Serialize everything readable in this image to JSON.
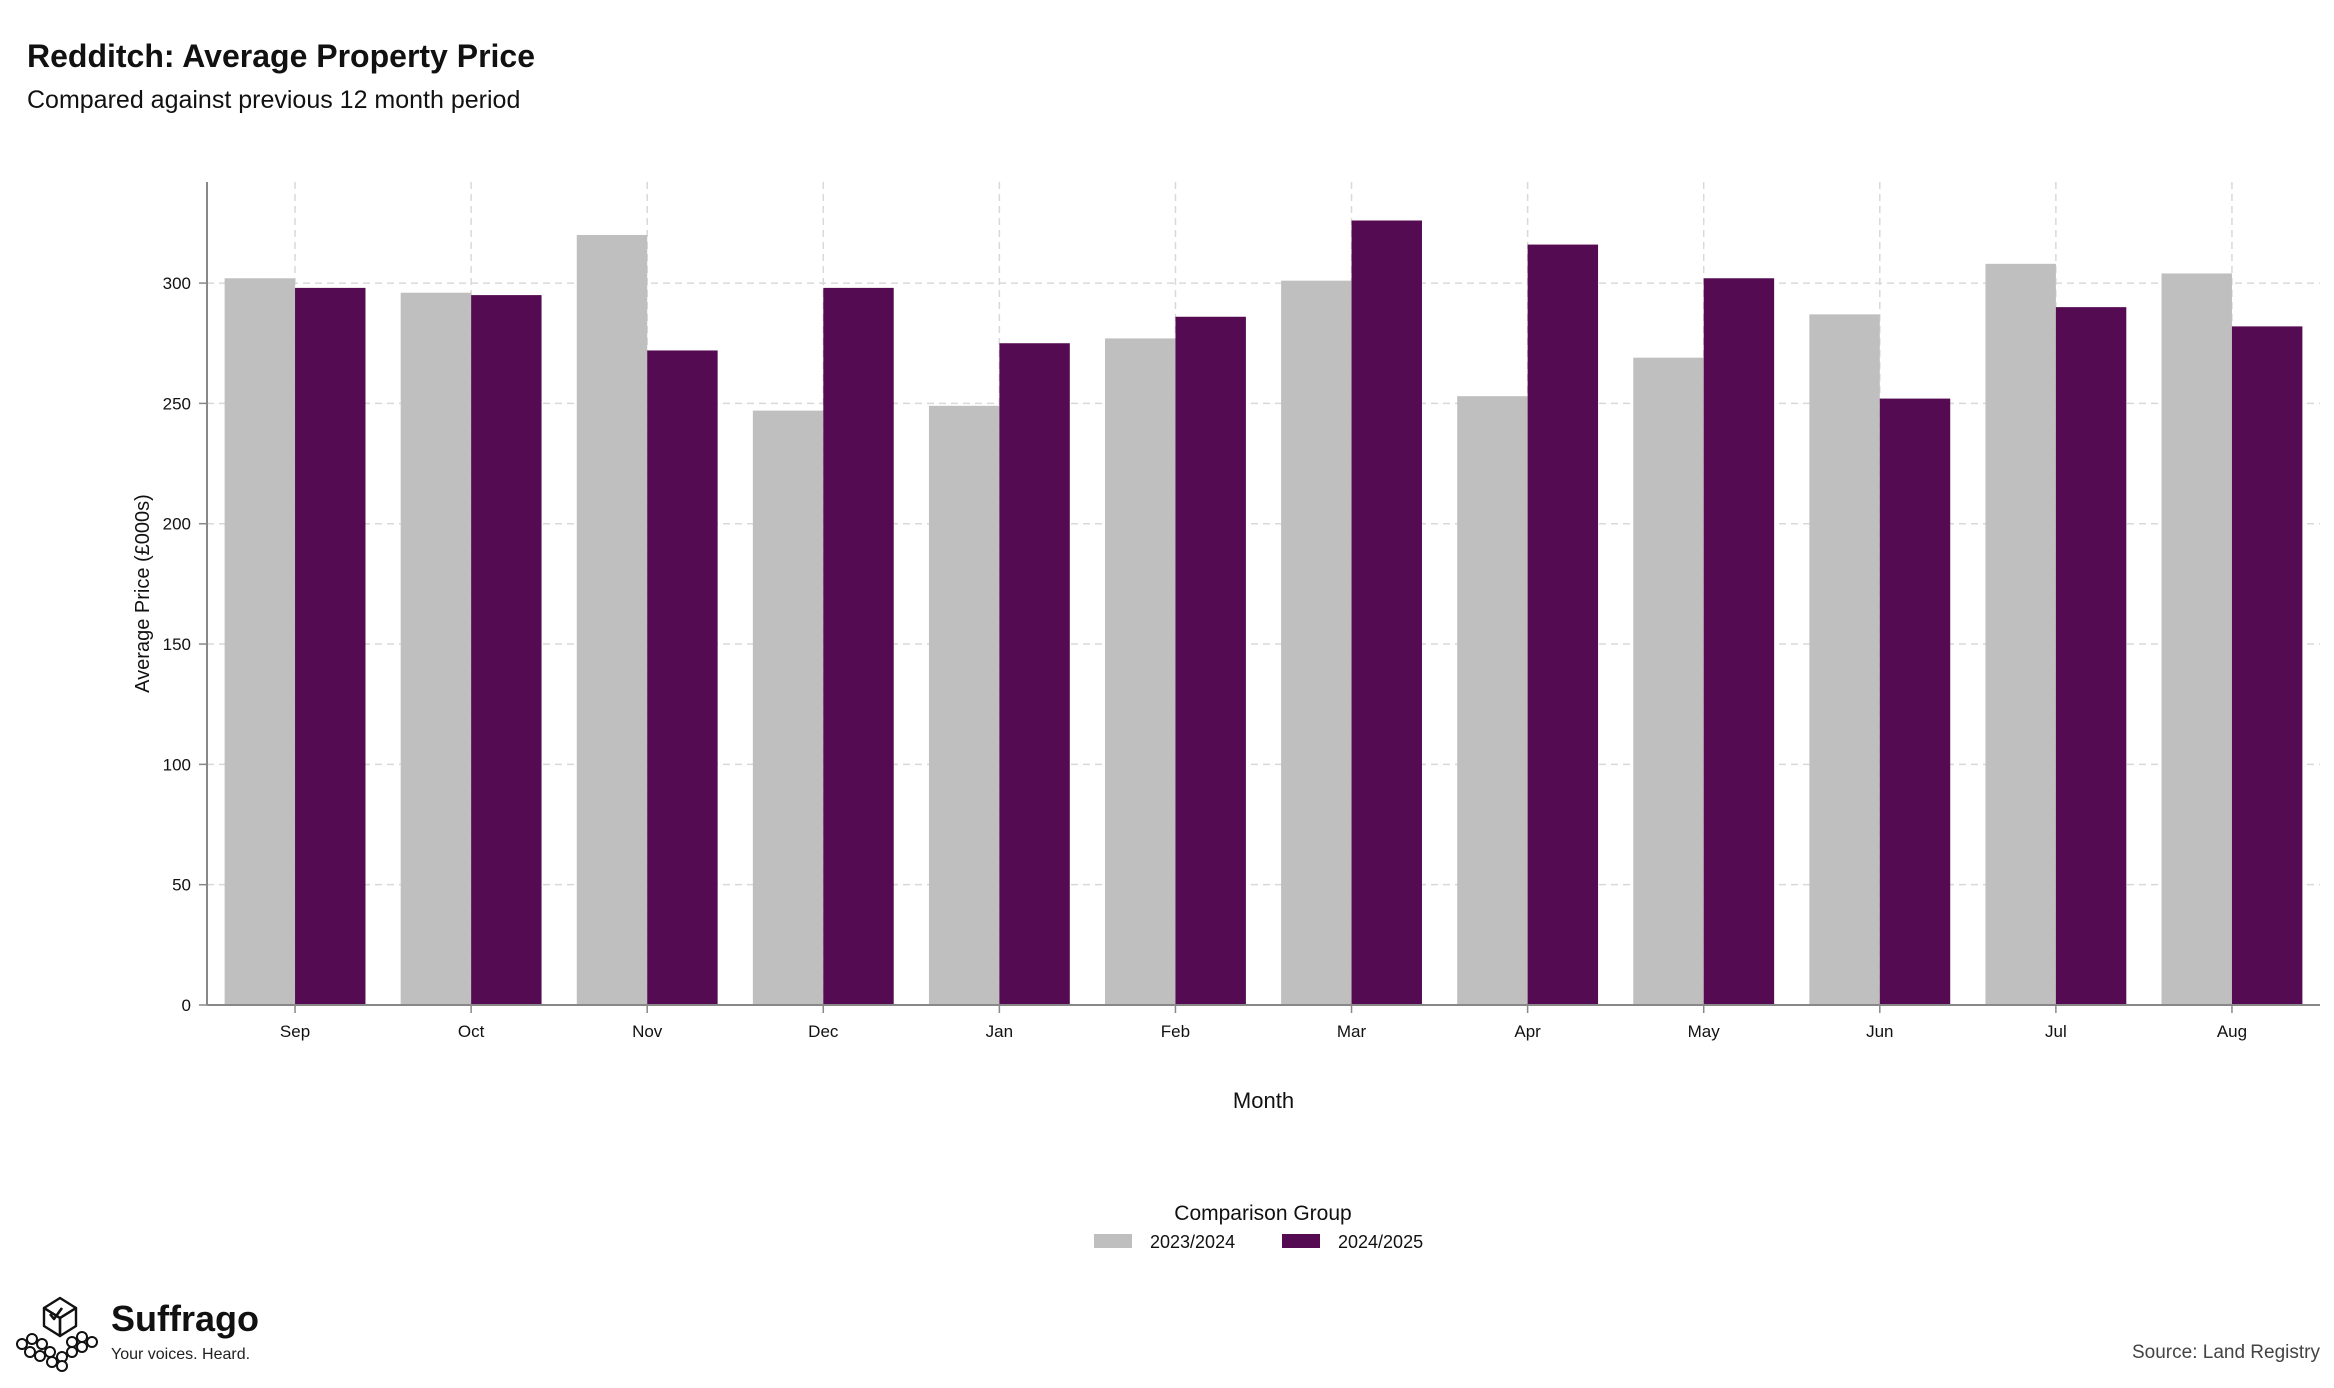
{
  "chart_data": {
    "type": "bar",
    "title": "Redditch: Average Property Price",
    "subtitle": "Compared against previous 12 month period",
    "xlabel": "Month",
    "ylabel": "Average Price (£000s)",
    "categories": [
      "Sep",
      "Oct",
      "Nov",
      "Dec",
      "Jan",
      "Feb",
      "Mar",
      "Apr",
      "May",
      "Jun",
      "Jul",
      "Aug"
    ],
    "ylim": [
      0,
      342
    ],
    "yticks": [
      0,
      50,
      100,
      150,
      200,
      250,
      300
    ],
    "grid": true,
    "legend_title": "Comparison Group",
    "legend_position": "bottom",
    "series": [
      {
        "name": "2023/2024",
        "color": "#bfbfbf",
        "values": [
          302,
          296,
          320,
          247,
          249,
          277,
          301,
          253,
          269,
          287,
          308,
          304
        ]
      },
      {
        "name": "2024/2025",
        "color": "#550b52",
        "values": [
          298,
          295,
          272,
          298,
          275,
          286,
          326,
          316,
          302,
          252,
          290,
          282
        ]
      }
    ]
  },
  "branding": {
    "name": "Suffrago",
    "tagline": "Your voices. Heard.",
    "logo_icon": "ballot-box-icon"
  },
  "source": "Source: Land Registry"
}
